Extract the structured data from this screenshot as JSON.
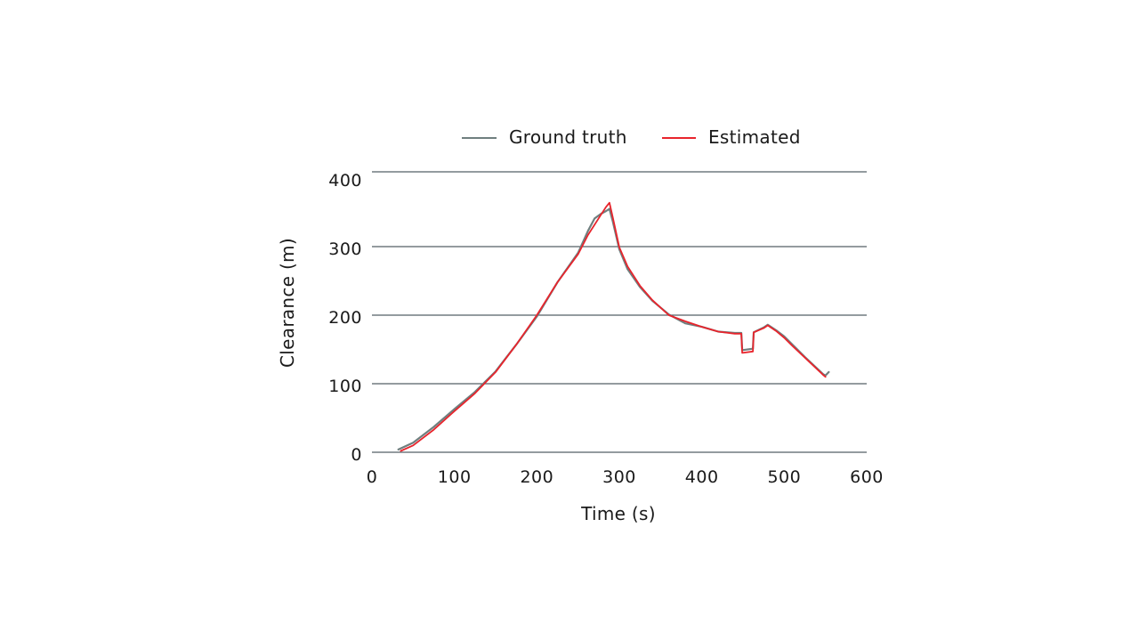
{
  "chart_data": {
    "type": "line",
    "xlabel": "Time (s)",
    "ylabel": "Clearance (m)",
    "xlim": [
      0,
      600
    ],
    "ylim": [
      0,
      400
    ],
    "x_ticks": [
      0,
      100,
      200,
      300,
      400,
      500,
      600
    ],
    "y_ticks": [
      0,
      100,
      200,
      300,
      400
    ],
    "grid": "horizontal",
    "legend_position": "top",
    "series": [
      {
        "name": "Ground truth",
        "color": "#6f7f7f",
        "x": [
          32,
          50,
          75,
          100,
          125,
          150,
          175,
          200,
          225,
          250,
          262,
          270,
          278,
          284,
          288,
          292,
          300,
          310,
          325,
          340,
          360,
          380,
          400,
          420,
          440,
          448,
          449,
          462,
          463,
          475,
          480,
          490,
          500,
          510,
          525,
          540,
          547,
          550,
          554
        ],
        "y": [
          4,
          14,
          37,
          63,
          88,
          118,
          157,
          198,
          248,
          291,
          323,
          341,
          348,
          352,
          355,
          337,
          296,
          267,
          241,
          221,
          201,
          188,
          183,
          176,
          174,
          174,
          149,
          151,
          175,
          182,
          186,
          178,
          169,
          157,
          139,
          122,
          114,
          112,
          117
        ]
      },
      {
        "name": "Estimated",
        "color": "#e8242c",
        "x": [
          35,
          50,
          75,
          100,
          125,
          150,
          175,
          200,
          225,
          250,
          262,
          270,
          278,
          284,
          288,
          292,
          300,
          310,
          325,
          340,
          360,
          380,
          400,
          420,
          440,
          448,
          449,
          462,
          463,
          475,
          480,
          490,
          500,
          510,
          525,
          540,
          547,
          550
        ],
        "y": [
          2,
          10,
          33,
          60,
          86,
          117,
          157,
          200,
          248,
          289,
          317,
          332,
          347,
          358,
          364,
          343,
          299,
          271,
          243,
          222,
          200,
          191,
          183,
          176,
          173,
          173,
          145,
          147,
          175,
          181,
          185,
          177,
          167,
          155,
          138,
          121,
          113,
          110
        ]
      }
    ]
  }
}
